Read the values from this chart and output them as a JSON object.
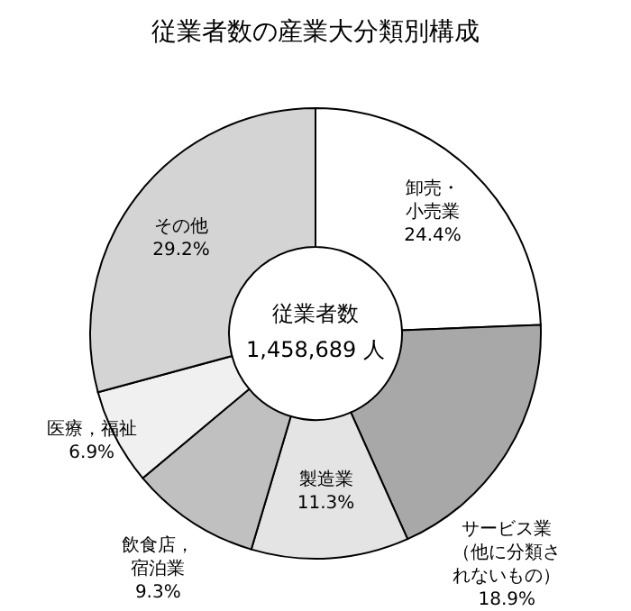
{
  "chart_data": {
    "type": "donut",
    "title": "従業者数の産業大分類別構成",
    "categories": [
      "卸売・小売業",
      "サービス業（他に分類されないもの）",
      "製造業",
      "飲食店，宿泊業",
      "医療，福祉",
      "その他"
    ],
    "values": [
      24.4,
      18.9,
      11.3,
      9.3,
      6.9,
      29.2
    ],
    "colors": [
      "#ffffff",
      "#a8a8a8",
      "#e4e4e4",
      "#c0c0c0",
      "#f0f0f0",
      "#d4d4d4"
    ],
    "value_labels": [
      "24.4%",
      "18.9%",
      "11.3%",
      "9.3%",
      "6.9%",
      "29.2%"
    ],
    "annotations": [
      "従業者数\n1,458,689 人"
    ]
  }
}
